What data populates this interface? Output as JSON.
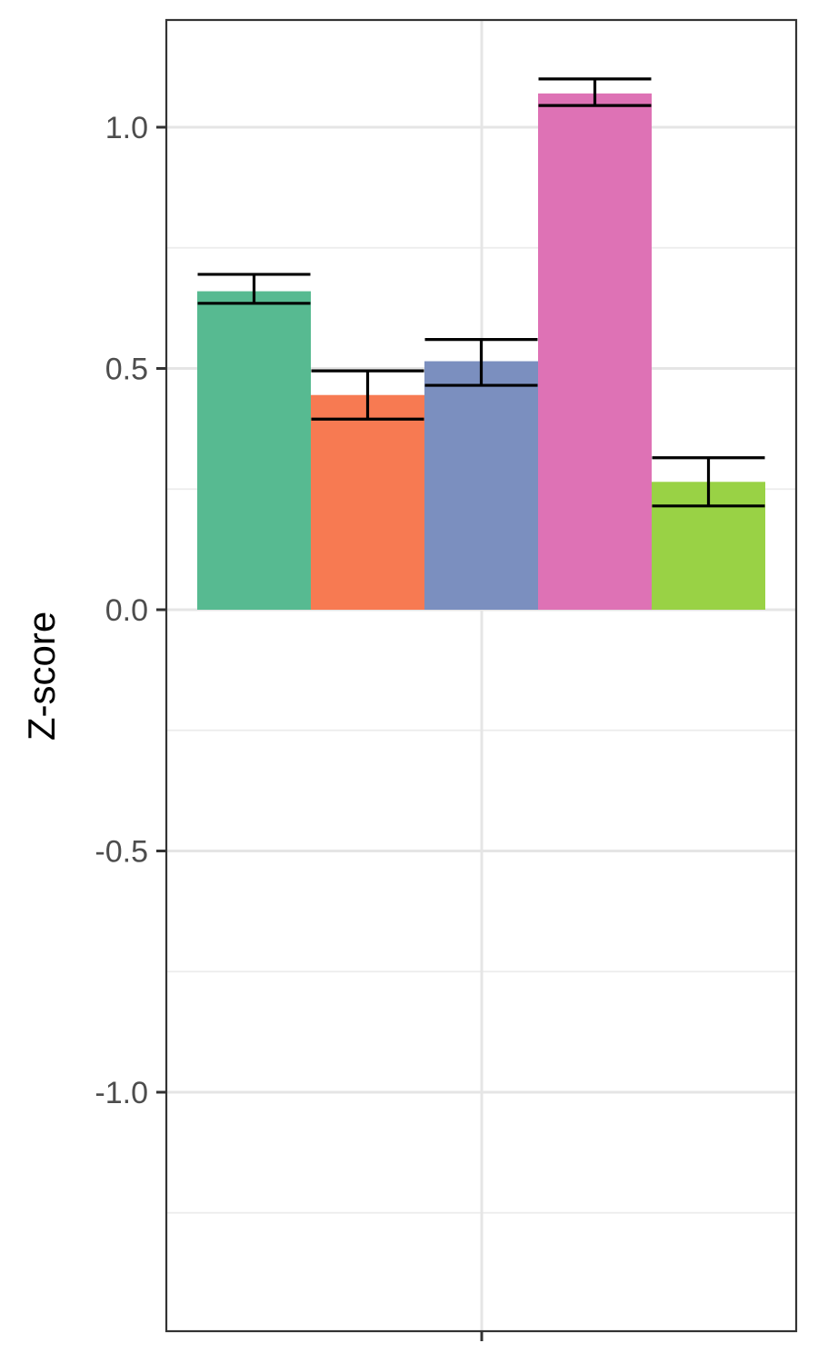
{
  "chart_data": {
    "type": "bar",
    "title": "",
    "xlabel": "",
    "ylabel": "Z-score",
    "ylim": [
      -1.4,
      1.22
    ],
    "y_ticks": [
      1.0,
      0.5,
      0.0,
      -0.5,
      -1.0
    ],
    "y_tick_labels": [
      "1.0",
      "0.5",
      "0.0",
      "-0.5",
      "-1.0"
    ],
    "y_minor_ticks": [
      0.75,
      0.25,
      -0.25,
      -0.75,
      -1.25
    ],
    "grid": true,
    "legend": "none",
    "bars": [
      {
        "value": 0.66,
        "err_low": 0.635,
        "err_high": 0.695,
        "color": "#57BA91"
      },
      {
        "value": 0.445,
        "err_low": 0.395,
        "err_high": 0.495,
        "color": "#F77A52"
      },
      {
        "value": 0.515,
        "err_low": 0.465,
        "err_high": 0.56,
        "color": "#7B8FBF"
      },
      {
        "value": 1.07,
        "err_low": 1.045,
        "err_high": 1.1,
        "color": "#DE72B5"
      },
      {
        "value": 0.265,
        "err_low": 0.215,
        "err_high": 0.315,
        "color": "#99D245"
      }
    ]
  }
}
